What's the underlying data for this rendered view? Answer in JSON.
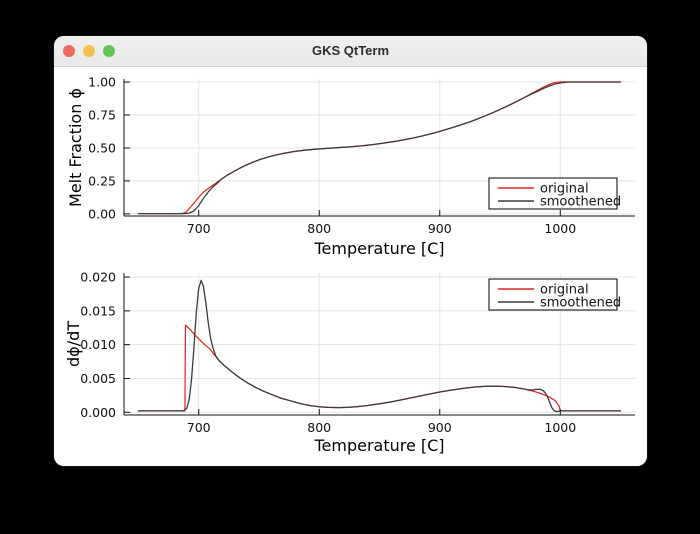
{
  "window": {
    "title": "GKS QtTerm",
    "controls": [
      {
        "name": "close",
        "color": "#ec6a5e"
      },
      {
        "name": "minimize",
        "color": "#f5bf4f"
      },
      {
        "name": "zoom",
        "color": "#61c554"
      }
    ]
  },
  "colors": {
    "background": "#000000",
    "window_bg": "#ffffff",
    "titlebar_bg": "#ececec",
    "grid": "#e4e4e4",
    "axis": "#111111",
    "tick_text": "#111111",
    "label_text": "#000000",
    "legend_border": "#000000",
    "original": "#df231c",
    "smoothened": "#3b3b3b"
  },
  "chart_data": [
    {
      "type": "line",
      "title": "",
      "xlabel": "Temperature [C]",
      "ylabel": "Melt Fraction ϕ",
      "xlim": [
        638,
        1062
      ],
      "ylim": [
        -0.016,
        1.023
      ],
      "grid": true,
      "legend_position": "bottom-right",
      "xticks": [
        700,
        800,
        900,
        1000
      ],
      "xtick_labels": [
        "700",
        "800",
        "900",
        "1000"
      ],
      "yticks": [
        0.0,
        0.25,
        0.5,
        0.75,
        1.0
      ],
      "ytick_labels": [
        "0.00",
        "0.25",
        "0.50",
        "0.75",
        "1.00"
      ],
      "series": [
        {
          "name": "original",
          "color": "#df231c",
          "width": 1.2,
          "points": [
            [
              650,
              0.002
            ],
            [
              686,
              0.002
            ],
            [
              689,
              0.01
            ],
            [
              694,
              0.06
            ],
            [
              699,
              0.115
            ],
            [
              704,
              0.165
            ],
            [
              709,
              0.2
            ],
            [
              713,
              0.225
            ],
            [
              718,
              0.258
            ],
            [
              724,
              0.295
            ],
            [
              730,
              0.327
            ],
            [
              737,
              0.36
            ],
            [
              744,
              0.389
            ],
            [
              751,
              0.413
            ],
            [
              758,
              0.432
            ],
            [
              765,
              0.449
            ],
            [
              772,
              0.462
            ],
            [
              780,
              0.474
            ],
            [
              788,
              0.483
            ],
            [
              796,
              0.49
            ],
            [
              805,
              0.496
            ],
            [
              815,
              0.502
            ],
            [
              825,
              0.508
            ],
            [
              835,
              0.516
            ],
            [
              845,
              0.526
            ],
            [
              855,
              0.539
            ],
            [
              865,
              0.553
            ],
            [
              875,
              0.57
            ],
            [
              885,
              0.59
            ],
            [
              895,
              0.613
            ],
            [
              905,
              0.639
            ],
            [
              915,
              0.667
            ],
            [
              925,
              0.698
            ],
            [
              935,
              0.733
            ],
            [
              945,
              0.771
            ],
            [
              955,
              0.813
            ],
            [
              965,
              0.858
            ],
            [
              973,
              0.897
            ],
            [
              980,
              0.932
            ],
            [
              986,
              0.961
            ],
            [
              990,
              0.979
            ],
            [
              994,
              0.993
            ],
            [
              997,
              0.999
            ],
            [
              1000,
              1.0
            ],
            [
              1050,
              1.0
            ]
          ]
        },
        {
          "name": "smoothened",
          "color": "#3b3b3b",
          "width": 1.3,
          "points": [
            [
              650,
              0.002
            ],
            [
              688,
              0.002
            ],
            [
              692,
              0.006
            ],
            [
              696,
              0.022
            ],
            [
              700,
              0.062
            ],
            [
              704,
              0.118
            ],
            [
              708,
              0.168
            ],
            [
              712,
              0.207
            ],
            [
              716,
              0.237
            ],
            [
              718,
              0.258
            ],
            [
              724,
              0.295
            ],
            [
              730,
              0.327
            ],
            [
              737,
              0.36
            ],
            [
              744,
              0.389
            ],
            [
              751,
              0.413
            ],
            [
              758,
              0.432
            ],
            [
              765,
              0.449
            ],
            [
              772,
              0.462
            ],
            [
              780,
              0.474
            ],
            [
              788,
              0.483
            ],
            [
              796,
              0.49
            ],
            [
              805,
              0.496
            ],
            [
              815,
              0.502
            ],
            [
              825,
              0.508
            ],
            [
              835,
              0.516
            ],
            [
              845,
              0.526
            ],
            [
              855,
              0.539
            ],
            [
              865,
              0.553
            ],
            [
              875,
              0.57
            ],
            [
              885,
              0.59
            ],
            [
              895,
              0.613
            ],
            [
              905,
              0.639
            ],
            [
              915,
              0.667
            ],
            [
              925,
              0.698
            ],
            [
              935,
              0.733
            ],
            [
              945,
              0.771
            ],
            [
              955,
              0.813
            ],
            [
              965,
              0.858
            ],
            [
              973,
              0.895
            ],
            [
              980,
              0.925
            ],
            [
              986,
              0.951
            ],
            [
              991,
              0.971
            ],
            [
              996,
              0.986
            ],
            [
              1001,
              0.995
            ],
            [
              1007,
              1.0
            ],
            [
              1050,
              1.0
            ]
          ]
        }
      ]
    },
    {
      "type": "line",
      "title": "",
      "xlabel": "Temperature [C]",
      "ylabel": "dϕ/dT",
      "xlim": [
        638,
        1062
      ],
      "ylim": [
        -0.0004,
        0.0206
      ],
      "grid": true,
      "legend_position": "top-right",
      "xticks": [
        700,
        800,
        900,
        1000
      ],
      "xtick_labels": [
        "700",
        "800",
        "900",
        "1000"
      ],
      "yticks": [
        0.0,
        0.005,
        0.01,
        0.015,
        0.02
      ],
      "ytick_labels": [
        "0.000",
        "0.005",
        "0.010",
        "0.015",
        "0.020"
      ],
      "series": [
        {
          "name": "original",
          "color": "#df231c",
          "width": 1.2,
          "points": [
            [
              650,
              0.0002
            ],
            [
              687,
              0.0002
            ],
            [
              688.5,
              0.0004
            ],
            [
              689,
              0.0129
            ],
            [
              693,
              0.0122
            ],
            [
              697,
              0.0114
            ],
            [
              701,
              0.0107
            ],
            [
              705,
              0.01
            ],
            [
              709,
              0.0094
            ],
            [
              713,
              0.0085
            ],
            [
              717,
              0.0076
            ],
            [
              722,
              0.0068
            ],
            [
              728,
              0.0059
            ],
            [
              734,
              0.0051
            ],
            [
              740,
              0.0044
            ],
            [
              747,
              0.0037
            ],
            [
              754,
              0.0031
            ],
            [
              761,
              0.0026
            ],
            [
              768,
              0.0021
            ],
            [
              776,
              0.0017
            ],
            [
              784,
              0.0013
            ],
            [
              792,
              0.001
            ],
            [
              800,
              0.00082
            ],
            [
              808,
              0.00072
            ],
            [
              816,
              0.0007
            ],
            [
              824,
              0.00074
            ],
            [
              832,
              0.00084
            ],
            [
              840,
              0.001
            ],
            [
              850,
              0.00125
            ],
            [
              860,
              0.00155
            ],
            [
              870,
              0.0019
            ],
            [
              880,
              0.00228
            ],
            [
              890,
              0.00265
            ],
            [
              900,
              0.003
            ],
            [
              910,
              0.0033
            ],
            [
              920,
              0.00355
            ],
            [
              930,
              0.00375
            ],
            [
              938,
              0.00385
            ],
            [
              946,
              0.00388
            ],
            [
              954,
              0.00382
            ],
            [
              962,
              0.00368
            ],
            [
              970,
              0.00345
            ],
            [
              978,
              0.0031
            ],
            [
              985,
              0.0027
            ],
            [
              991,
              0.00225
            ],
            [
              996,
              0.0017
            ],
            [
              999,
              0.0009
            ],
            [
              1000,
              0.0002
            ],
            [
              1050,
              0.0002
            ]
          ]
        },
        {
          "name": "smoothened",
          "color": "#3b3b3b",
          "width": 1.3,
          "points": [
            [
              650,
              0.0002
            ],
            [
              688,
              0.0002
            ],
            [
              690,
              0.0006
            ],
            [
              692,
              0.0018
            ],
            [
              694,
              0.0048
            ],
            [
              696,
              0.0095
            ],
            [
              698,
              0.0148
            ],
            [
              700,
              0.0183
            ],
            [
              702,
              0.0195
            ],
            [
              704,
              0.0186
            ],
            [
              706,
              0.016
            ],
            [
              708,
              0.0131
            ],
            [
              710,
              0.0108
            ],
            [
              712,
              0.0094
            ],
            [
              714,
              0.0084
            ],
            [
              717,
              0.0076
            ],
            [
              722,
              0.0068
            ],
            [
              728,
              0.0059
            ],
            [
              734,
              0.0051
            ],
            [
              740,
              0.0044
            ],
            [
              747,
              0.0037
            ],
            [
              754,
              0.0031
            ],
            [
              761,
              0.0026
            ],
            [
              768,
              0.0021
            ],
            [
              776,
              0.0017
            ],
            [
              784,
              0.0013
            ],
            [
              792,
              0.001
            ],
            [
              800,
              0.00082
            ],
            [
              808,
              0.00072
            ],
            [
              816,
              0.0007
            ],
            [
              824,
              0.00074
            ],
            [
              832,
              0.00084
            ],
            [
              840,
              0.001
            ],
            [
              850,
              0.00125
            ],
            [
              860,
              0.00155
            ],
            [
              870,
              0.0019
            ],
            [
              880,
              0.00228
            ],
            [
              890,
              0.00265
            ],
            [
              900,
              0.003
            ],
            [
              910,
              0.0033
            ],
            [
              920,
              0.00355
            ],
            [
              930,
              0.00375
            ],
            [
              938,
              0.00385
            ],
            [
              946,
              0.00388
            ],
            [
              954,
              0.00382
            ],
            [
              962,
              0.00368
            ],
            [
              968,
              0.0035
            ],
            [
              973,
              0.00335
            ],
            [
              977,
              0.0033
            ],
            [
              980,
              0.00338
            ],
            [
              983,
              0.00342
            ],
            [
              986,
              0.0032
            ],
            [
              989,
              0.0025
            ],
            [
              991,
              0.0016
            ],
            [
              993,
              0.0007
            ],
            [
              995,
              0.0002
            ],
            [
              997,
              0.0001
            ],
            [
              1000,
              0.0002
            ],
            [
              1050,
              0.0002
            ]
          ]
        }
      ]
    }
  ]
}
